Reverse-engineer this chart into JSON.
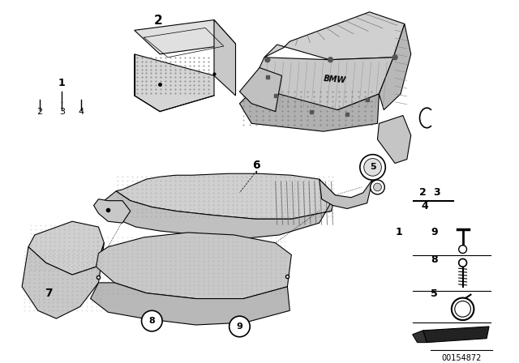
{
  "bg_color": "#ffffff",
  "part_number": "00154872",
  "fig_width": 6.4,
  "fig_height": 4.48,
  "dpi": 100,
  "black": "#000000",
  "gray_light": "#d8d8d8",
  "gray_mid": "#bbbbbb",
  "gray_dark": "#888888"
}
